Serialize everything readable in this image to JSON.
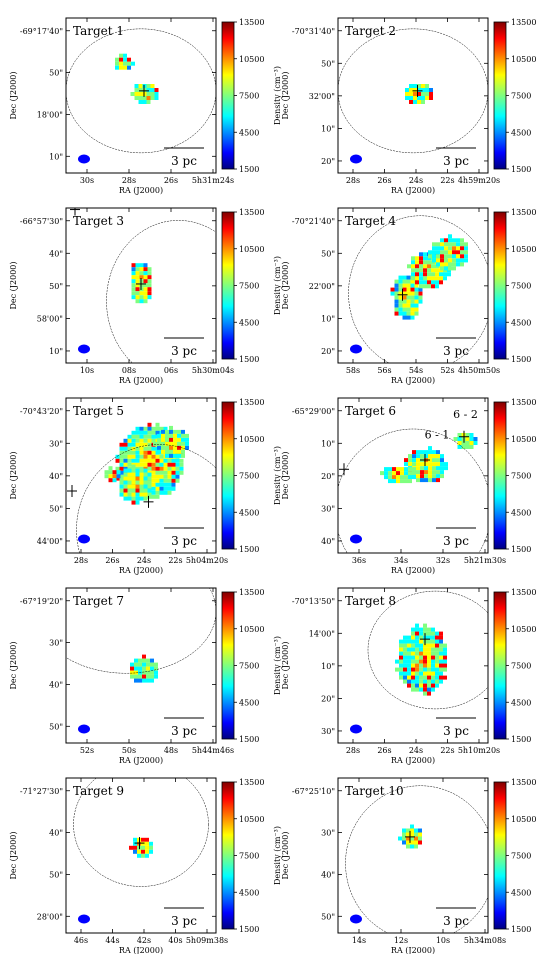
{
  "chart_data": [
    {
      "type": "heatmap",
      "title": "Target 1",
      "xlabel": "RA (J2000)",
      "ylabel": "Dec (J2000)",
      "xticks": [
        "30s",
        "28s",
        "26s",
        "5h31m24s"
      ],
      "yticks": [
        "-69°17'40\"",
        "50\"",
        "18'00\"",
        "10\""
      ],
      "colorbar": {
        "label": "Density (cm⁻³)",
        "ticks": [
          "13500",
          "10500",
          "7500",
          "4500",
          "1500"
        ],
        "range": [
          1500,
          13500
        ]
      },
      "scalebar": "3 pc",
      "cutoff": "-69°17'40\"",
      "annotations": []
    },
    {
      "type": "heatmap",
      "title": "Target 2",
      "xlabel": "RA (J2000)",
      "ylabel": "Dec (J2000)",
      "xticks": [
        "28s",
        "26s",
        "24s",
        "22s",
        "4h59m20s"
      ],
      "yticks": [
        "-70°31'40\"",
        "50\"",
        "32'00\"",
        "10\"",
        "20\""
      ],
      "colorbar": {
        "label": "Density (cm⁻³)",
        "ticks": [
          "13500",
          "10500",
          "7500",
          "4500",
          "1500"
        ],
        "range": [
          1500,
          13500
        ]
      },
      "scalebar": "3 pc",
      "annotations": []
    },
    {
      "type": "heatmap",
      "title": "Target 3",
      "xlabel": "RA (J2000)",
      "ylabel": "Dec (J2000)",
      "xticks": [
        "10s",
        "08s",
        "06s",
        "5h30m04s"
      ],
      "yticks": [
        "-66°57'30\"",
        "40\"",
        "50\"",
        "58'00\"",
        "10\""
      ],
      "colorbar": {
        "label": "Density (cm⁻³)",
        "ticks": [
          "13500",
          "10500",
          "7500",
          "4500",
          "1500"
        ],
        "range": [
          1500,
          13500
        ]
      },
      "scalebar": "3 pc",
      "annotations": []
    },
    {
      "type": "heatmap",
      "title": "Target 4",
      "xlabel": "RA (J2000)",
      "ylabel": "Dec (J2000)",
      "xticks": [
        "58s",
        "56s",
        "54s",
        "52s",
        "4h50m50s"
      ],
      "yticks": [
        "-70°21'40\"",
        "50\"",
        "22'00\"",
        "10\"",
        "20\""
      ],
      "colorbar": {
        "label": "Density (cm⁻³)",
        "ticks": [
          "13500",
          "10500",
          "7500",
          "4500",
          "1500"
        ],
        "range": [
          1500,
          13500
        ]
      },
      "scalebar": "3 pc",
      "annotations": []
    },
    {
      "type": "heatmap",
      "title": "Target 5",
      "xlabel": "RA (J2000)",
      "ylabel": "Dec (J2000)",
      "xticks": [
        "28s",
        "26s",
        "24s",
        "22s",
        "5h04m20s"
      ],
      "yticks": [
        "-70°43'20\"",
        "30\"",
        "40\"",
        "50\"",
        "44'00\""
      ],
      "colorbar": {
        "label": "Density (cm⁻³)",
        "ticks": [
          "13500",
          "10500",
          "7500",
          "4500",
          "1500"
        ],
        "range": [
          1500,
          13500
        ]
      },
      "scalebar": "3 pc",
      "annotations": []
    },
    {
      "type": "heatmap",
      "title": "Target 6",
      "xlabel": "RA (J2000)",
      "ylabel": "Dec (J2000)",
      "xticks": [
        "36s",
        "34s",
        "32s",
        "5h21m30s"
      ],
      "yticks": [
        "-65°29'00\"",
        "10\"",
        "20\"",
        "30\"",
        "40\""
      ],
      "colorbar": {
        "label": "Density (cm⁻³)",
        "ticks": [
          "13500",
          "10500",
          "7500",
          "4500",
          "1500"
        ],
        "range": [
          1500,
          13500
        ]
      },
      "scalebar": "3 pc",
      "annotations": [
        "6 - 1",
        "6 - 2"
      ]
    },
    {
      "type": "heatmap",
      "title": "Target 7",
      "xlabel": "RA (J2000)",
      "ylabel": "Dec (J2000)",
      "xticks": [
        "52s",
        "50s",
        "48s",
        "5h44m46s"
      ],
      "yticks": [
        "-67°19'20\"",
        "30\"",
        "40\"",
        "50\""
      ],
      "colorbar": {
        "label": "Density (cm⁻³)",
        "ticks": [
          "13500",
          "10500",
          "7500",
          "4500",
          "1500"
        ],
        "range": [
          1500,
          13500
        ]
      },
      "scalebar": "3 pc",
      "annotations": []
    },
    {
      "type": "heatmap",
      "title": "Target 8",
      "xlabel": "RA (J2000)",
      "ylabel": "Dec (J2000)",
      "xticks": [
        "28s",
        "26s",
        "24s",
        "22s",
        "5h10m20s"
      ],
      "yticks": [
        "-70°13'50\"",
        "14'00\"",
        "10\"",
        "20\"",
        "30\""
      ],
      "colorbar": {
        "label": "Density (cm⁻³)",
        "ticks": [
          "13500",
          "10500",
          "7500",
          "4500",
          "1500"
        ],
        "range": [
          1500,
          13500
        ]
      },
      "scalebar": "3 pc",
      "annotations": []
    },
    {
      "type": "heatmap",
      "title": "Target 9",
      "xlabel": "RA (J2000)",
      "ylabel": "Dec (J2000)",
      "xticks": [
        "46s",
        "44s",
        "42s",
        "40s",
        "5h09m38s"
      ],
      "yticks": [
        "-71°27'30\"",
        "40\"",
        "50\"",
        "28'00\""
      ],
      "colorbar": {
        "label": "Density (cm⁻³)",
        "ticks": [
          "13500",
          "10500",
          "7500",
          "4500",
          "1500"
        ],
        "range": [
          1500,
          13500
        ]
      },
      "scalebar": "3 pc",
      "annotations": []
    },
    {
      "type": "heatmap",
      "title": "Target 10",
      "xlabel": "RA (J2000)",
      "ylabel": "Dec (J2000)",
      "xticks": [
        "14s",
        "12s",
        "10s",
        "5h34m08s"
      ],
      "yticks": [
        "-67°25'10\"",
        "30\"",
        "40\"",
        "50\""
      ],
      "colorbar": {
        "label": "Density (cm⁻³)",
        "ticks": [
          "13500",
          "10500",
          "7500",
          "4500",
          "1500"
        ],
        "range": [
          1500,
          13500
        ]
      },
      "scalebar": "3 pc",
      "annotations": []
    }
  ],
  "colors": {
    "jet": [
      "#00007f",
      "#0000ff",
      "#007fff",
      "#00ffff",
      "#7fff7f",
      "#ffff00",
      "#ff7f00",
      "#ff0000",
      "#7f0000"
    ],
    "frame": "#000000"
  }
}
